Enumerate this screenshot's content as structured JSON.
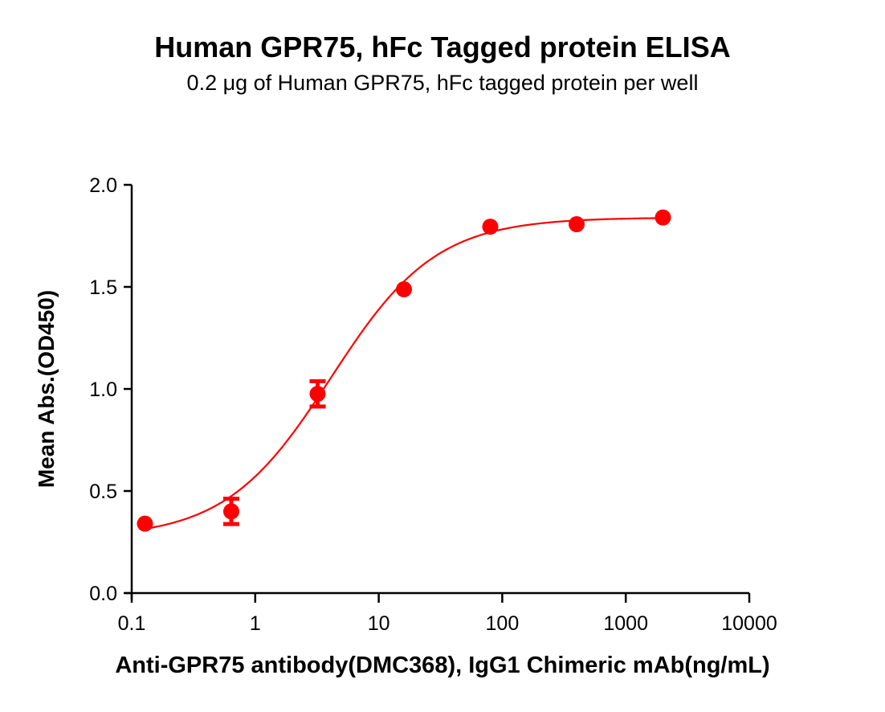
{
  "chart_data": {
    "type": "scatter",
    "title": "Human GPR75, hFc Tagged protein ELISA",
    "subtitle": "0.2 μg of Human GPR75, hFc tagged protein per well",
    "xlabel": "Anti-GPR75 antibody(DMC368), IgG1 Chimeric mAb(ng/mL)",
    "ylabel": "Mean Abs.(OD450)",
    "xscale": "log",
    "xlim": [
      0.1,
      10000
    ],
    "ylim": [
      0.0,
      2.0
    ],
    "x_ticks": [
      0.1,
      1,
      10,
      100,
      1000,
      10000
    ],
    "x_tick_labels": [
      "0.1",
      "1",
      "10",
      "100",
      "1000",
      "10000"
    ],
    "y_ticks": [
      0.0,
      0.5,
      1.0,
      1.5,
      2.0
    ],
    "y_tick_labels": [
      "0.0",
      "0.5",
      "1.0",
      "1.5",
      "2.0"
    ],
    "grid": false,
    "legend": null,
    "series": [
      {
        "name": "Anti-GPR75 antibody(DMC368)",
        "color": "#ff0000",
        "x": [
          0.128,
          0.64,
          3.2,
          16,
          80,
          400,
          2000
        ],
        "y": [
          0.34,
          0.4,
          0.976,
          1.488,
          1.795,
          1.807,
          1.84
        ],
        "error": [
          0.01,
          0.07,
          0.07,
          0.01,
          0.01,
          0.01,
          0.01
        ],
        "fit": {
          "model": "4PL",
          "bottom": 0.27,
          "top": 1.84,
          "ec50": 4.1,
          "hill": 1.02
        }
      }
    ]
  },
  "colors": {
    "series": "#ff0000",
    "axis": "#000000"
  }
}
